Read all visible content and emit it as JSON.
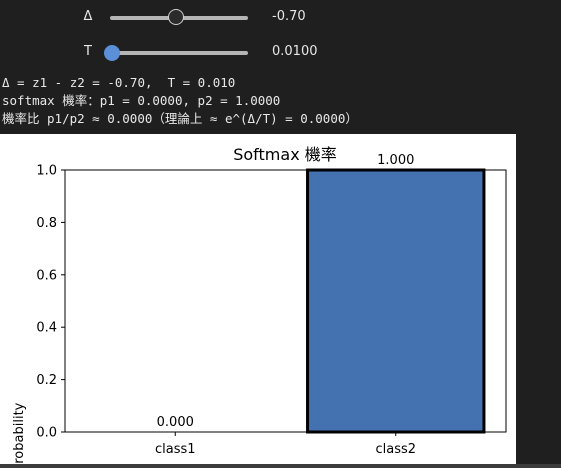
{
  "sliders": [
    {
      "label": "Δ",
      "value_text": "-0.70",
      "position_fraction": 0.457,
      "thumb_style": "gray"
    },
    {
      "label": "T",
      "value_text": "0.0100",
      "position_fraction": 0.0,
      "thumb_style": "blue"
    }
  ],
  "output": {
    "line1": "Δ = z1 - z2 = -0.70,  T = 0.010",
    "line2": "softmax 機率：p1 = 0.0000, p2 = 1.0000",
    "line3": "機率比 p1/p2 ≈ 0.0000（理論上 ≈ e^(Δ/T) = 0.0000）"
  },
  "colors": {
    "background": "#1f1f1f",
    "bar_fill": "#4472b0",
    "slider_thumb_blue": "#5b8fd8"
  },
  "chart_data": {
    "type": "bar",
    "title": "Softmax 機率",
    "categories": [
      "class1",
      "class2"
    ],
    "values": [
      0.0,
      1.0
    ],
    "value_labels": [
      "0.000",
      "1.000"
    ],
    "xlabel": "",
    "ylabel": "Probability",
    "ylim": [
      0,
      1.0
    ],
    "yticks": [
      "0.0",
      "0.2",
      "0.4",
      "0.6",
      "0.8",
      "1.0"
    ],
    "grid": false
  }
}
